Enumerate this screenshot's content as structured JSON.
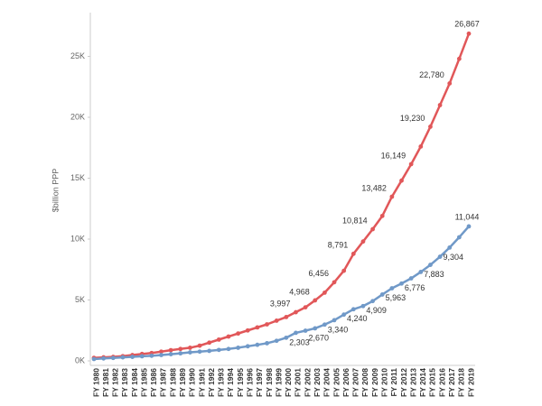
{
  "chart_data": {
    "type": "line",
    "ylabel": "$billion PPP",
    "categories": [
      "FY 1980",
      "FY 1981",
      "FY 1982",
      "FY 1983",
      "FY 1984",
      "FY 1985",
      "FY 1986",
      "FY 1987",
      "FY 1988",
      "FY 1989",
      "FY 1990",
      "FY 1991",
      "FY 1992",
      "FY 1993",
      "FY 1994",
      "FY 1995",
      "FY 1996",
      "FY 1997",
      "FY 1998",
      "FY 1999",
      "FY 2000",
      "FY 2001",
      "FY 2002",
      "FY 2003",
      "FY 2004",
      "FY 2005",
      "FY 2006",
      "FY 2007",
      "FY 2008",
      "FY 2009",
      "FY 2010",
      "FY 2011",
      "FY 2012",
      "FY 2013",
      "FY 2014",
      "FY 2015",
      "FY 2016",
      "FY 2017",
      "FY 2018",
      "FY 2019"
    ],
    "series": [
      {
        "color": "#e15759",
        "values": [
          250,
          290,
          330,
          390,
          480,
          570,
          650,
          760,
          880,
          980,
          1080,
          1250,
          1500,
          1750,
          2000,
          2250,
          2500,
          2750,
          3000,
          3300,
          3600,
          3997,
          4400,
          4968,
          5600,
          6456,
          7400,
          8791,
          9800,
          10814,
          11900,
          13482,
          14800,
          16149,
          17600,
          19230,
          21000,
          22780,
          24800,
          26867
        ],
        "value_labels": [
          null,
          null,
          null,
          null,
          null,
          null,
          null,
          null,
          null,
          null,
          null,
          null,
          null,
          null,
          null,
          null,
          null,
          null,
          null,
          null,
          null,
          "3,997",
          null,
          "4,968",
          null,
          "6,456",
          null,
          "8,791",
          null,
          "10,814",
          null,
          "13,482",
          null,
          "16,149",
          null,
          "19,230",
          null,
          "22,780",
          null,
          "26,867"
        ]
      },
      {
        "color": "#7099c8",
        "values": [
          150,
          200,
          240,
          290,
          330,
          380,
          420,
          480,
          550,
          620,
          700,
          760,
          820,
          900,
          980,
          1080,
          1200,
          1320,
          1450,
          1650,
          1900,
          2303,
          2480,
          2670,
          2980,
          3340,
          3800,
          4240,
          4500,
          4909,
          5450,
          5963,
          6350,
          6776,
          7300,
          7883,
          8550,
          9304,
          10150,
          11044
        ],
        "value_labels": [
          null,
          null,
          null,
          null,
          null,
          null,
          null,
          null,
          null,
          null,
          null,
          null,
          null,
          null,
          null,
          null,
          null,
          null,
          null,
          null,
          null,
          "2,303",
          null,
          "2,670",
          null,
          "3,340",
          null,
          "4,240",
          null,
          "4,909",
          null,
          "5,963",
          null,
          "6,776",
          null,
          "7,883",
          null,
          "9,304",
          null,
          "11,044"
        ]
      }
    ],
    "ylim": [
      0,
      28000
    ],
    "yticks": [
      {
        "value": 0,
        "label": "0K"
      },
      {
        "value": 5000,
        "label": "5K"
      },
      {
        "value": 10000,
        "label": "10K"
      },
      {
        "value": 15000,
        "label": "15K"
      },
      {
        "value": 20000,
        "label": "20K"
      },
      {
        "value": 25000,
        "label": "25K"
      }
    ],
    "grid": false
  }
}
